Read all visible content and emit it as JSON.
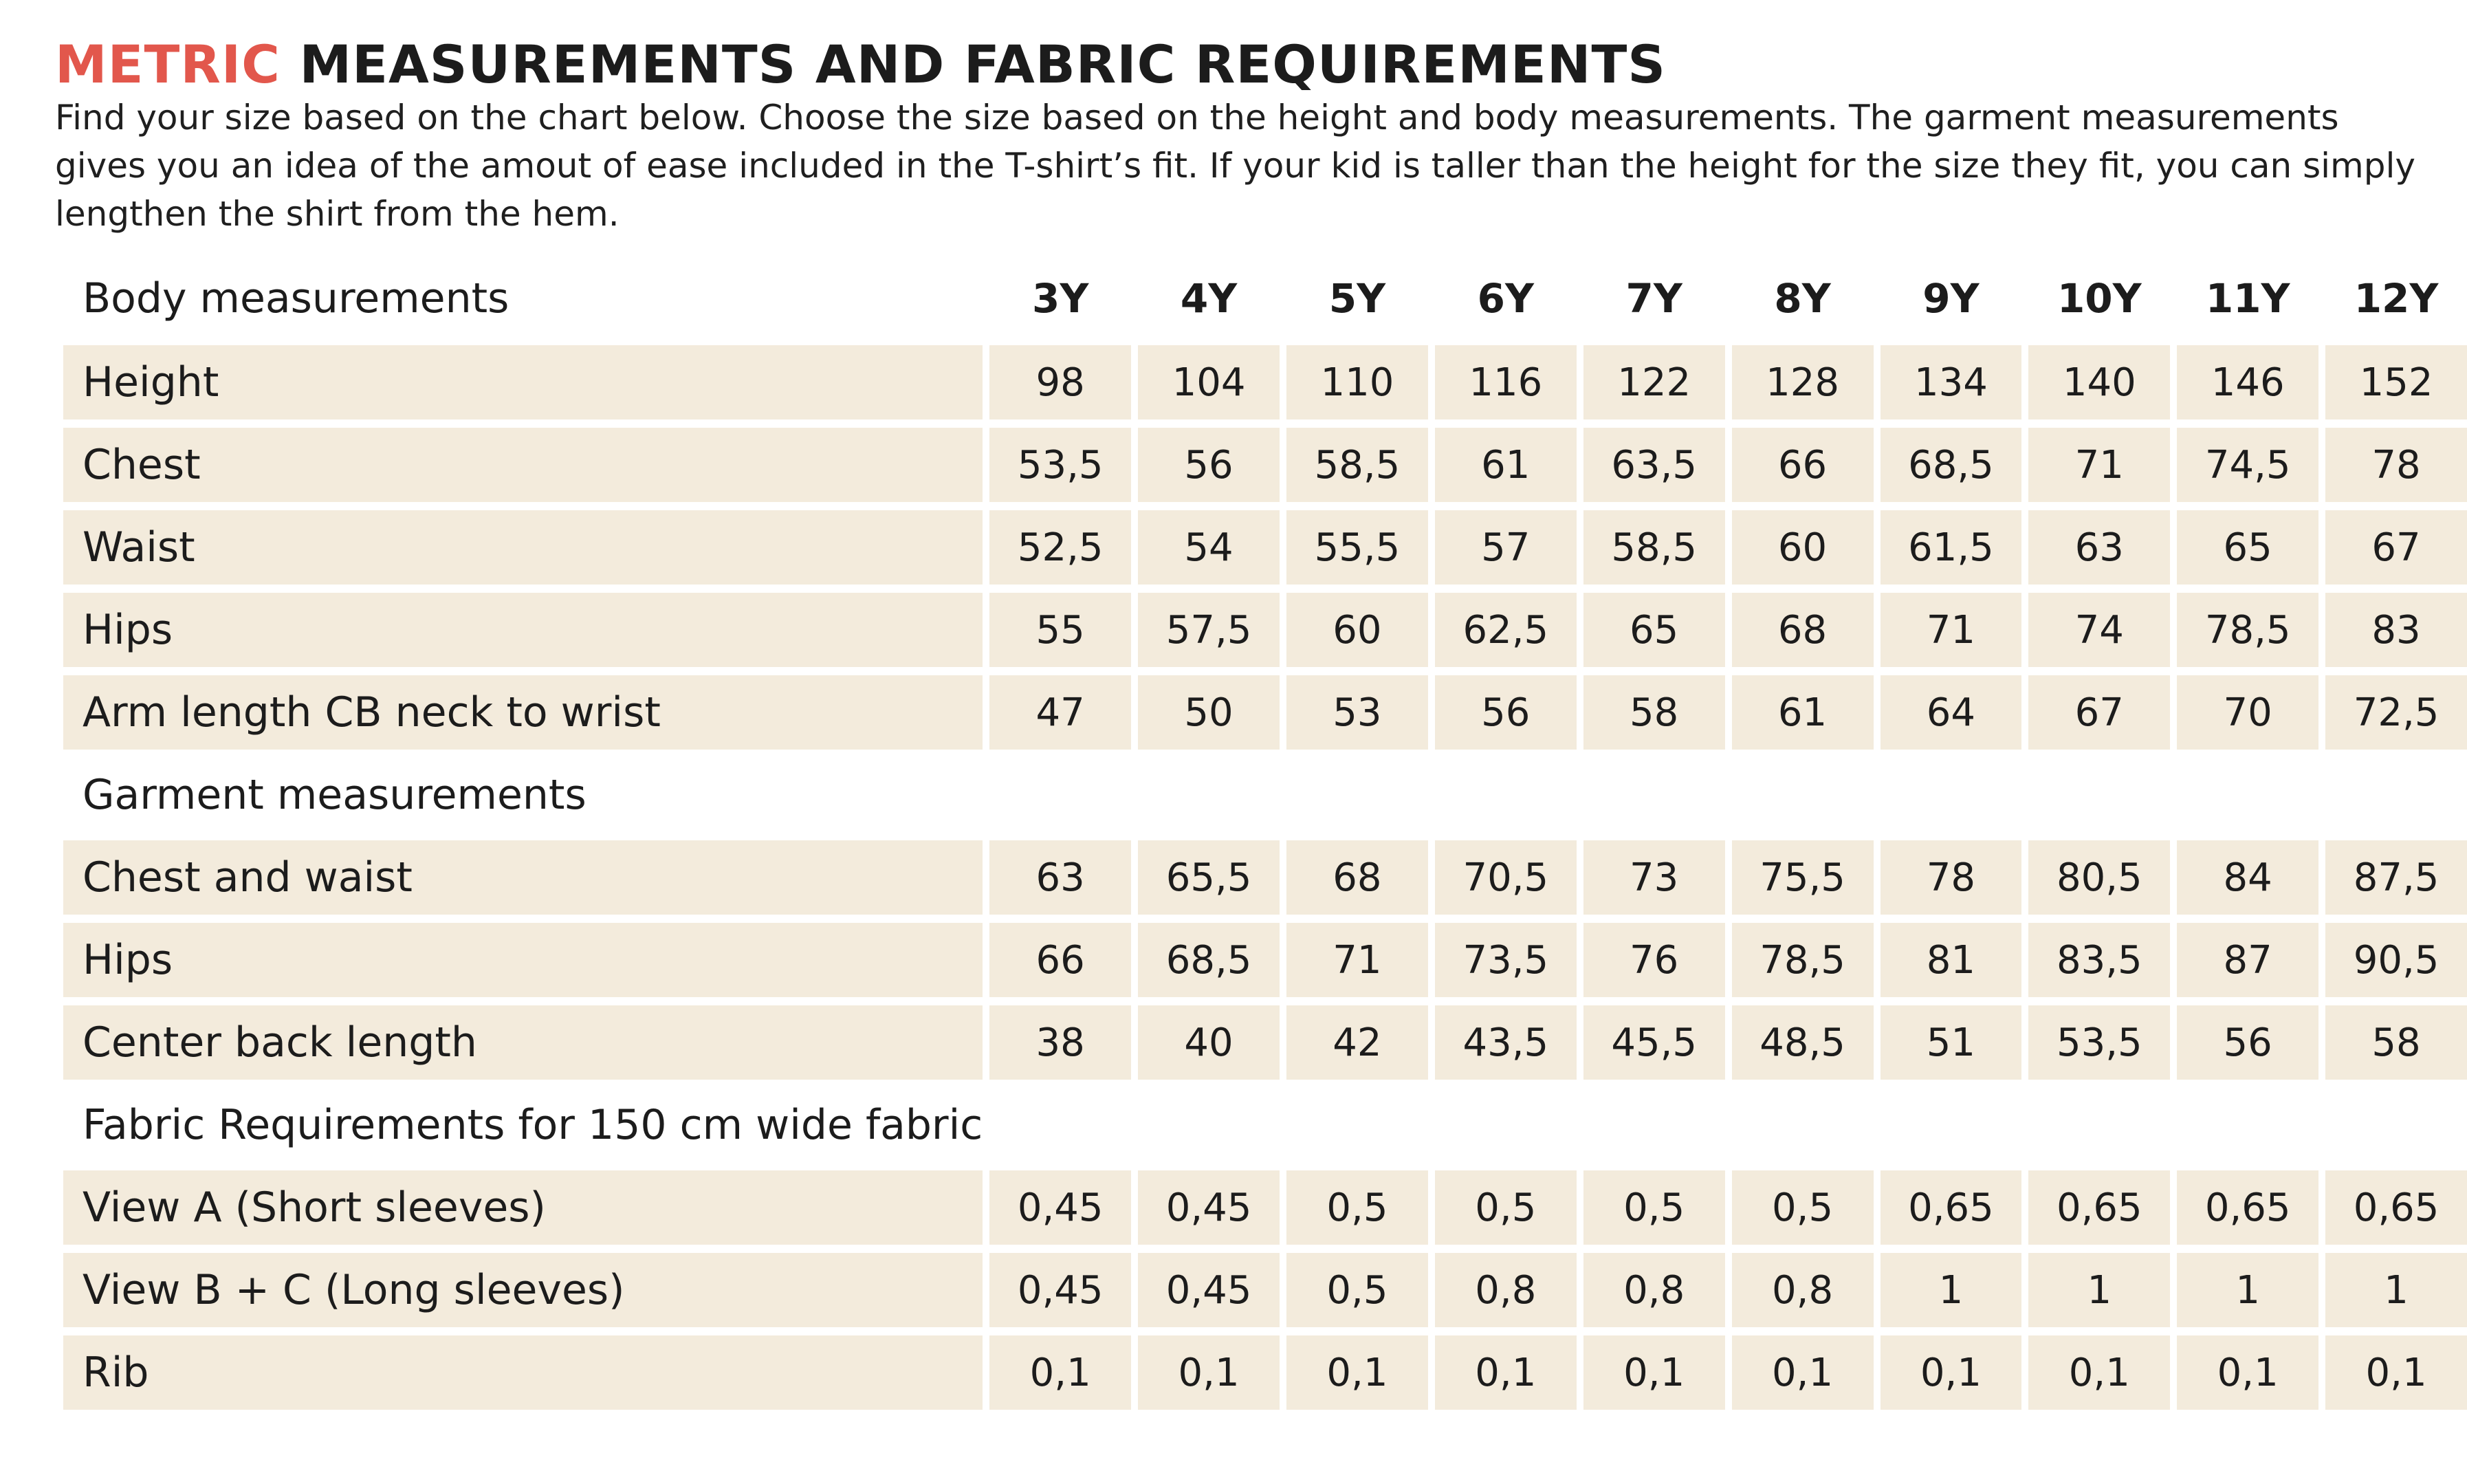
{
  "heading": {
    "accent": "METRIC",
    "rest": "MEASUREMENTS AND FABRIC REQUIREMENTS"
  },
  "intro": "Find your size based on the chart below. Choose the size based on the height and body measurements. The garment measurements gives you an idea of the amout of ease included in the T-shirt’s fit. If your kid is taller than the height for the size they fit, you can simply lengthen the shirt from the hem.",
  "colors": {
    "accent": "#e2574c",
    "cell_background": "#f3ebdc",
    "text": "#1c1c1c"
  },
  "table": {
    "sizes": [
      "3Y",
      "4Y",
      "5Y",
      "6Y",
      "7Y",
      "8Y",
      "9Y",
      "10Y",
      "11Y",
      "12Y"
    ],
    "sections": [
      {
        "title": "Body measurements",
        "rows": [
          {
            "label": "Height",
            "values": [
              "98",
              "104",
              "110",
              "116",
              "122",
              "128",
              "134",
              "140",
              "146",
              "152"
            ]
          },
          {
            "label": "Chest",
            "values": [
              "53,5",
              "56",
              "58,5",
              "61",
              "63,5",
              "66",
              "68,5",
              "71",
              "74,5",
              "78"
            ]
          },
          {
            "label": "Waist",
            "values": [
              "52,5",
              "54",
              "55,5",
              "57",
              "58,5",
              "60",
              "61,5",
              "63",
              "65",
              "67"
            ]
          },
          {
            "label": "Hips",
            "values": [
              "55",
              "57,5",
              "60",
              "62,5",
              "65",
              "68",
              "71",
              "74",
              "78,5",
              "83"
            ]
          },
          {
            "label": "Arm length CB neck to wrist",
            "values": [
              "47",
              "50",
              "53",
              "56",
              "58",
              "61",
              "64",
              "67",
              "70",
              "72,5"
            ]
          }
        ]
      },
      {
        "title": "Garment measurements",
        "rows": [
          {
            "label": "Chest and waist",
            "values": [
              "63",
              "65,5",
              "68",
              "70,5",
              "73",
              "75,5",
              "78",
              "80,5",
              "84",
              "87,5"
            ]
          },
          {
            "label": "Hips",
            "values": [
              "66",
              "68,5",
              "71",
              "73,5",
              "76",
              "78,5",
              "81",
              "83,5",
              "87",
              "90,5"
            ]
          },
          {
            "label": "Center back length",
            "values": [
              "38",
              "40",
              "42",
              "43,5",
              "45,5",
              "48,5",
              "51",
              "53,5",
              "56",
              "58"
            ]
          }
        ]
      },
      {
        "title": "Fabric Requirements for 150 cm wide fabric",
        "rows": [
          {
            "label": "View A (Short sleeves)",
            "values": [
              "0,45",
              "0,45",
              "0,5",
              "0,5",
              "0,5",
              "0,5",
              "0,65",
              "0,65",
              "0,65",
              "0,65"
            ]
          },
          {
            "label": "View B + C (Long sleeves)",
            "values": [
              "0,45",
              "0,45",
              "0,5",
              "0,8",
              "0,8",
              "0,8",
              "1",
              "1",
              "1",
              "1"
            ]
          },
          {
            "label": "Rib",
            "values": [
              "0,1",
              "0,1",
              "0,1",
              "0,1",
              "0,1",
              "0,1",
              "0,1",
              "0,1",
              "0,1",
              "0,1"
            ]
          }
        ]
      }
    ]
  }
}
